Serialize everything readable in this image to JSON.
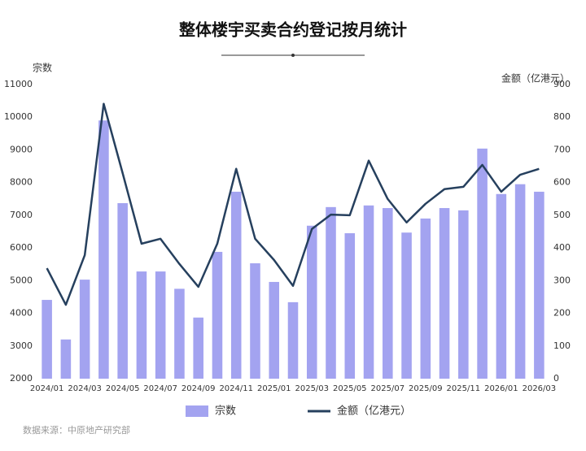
{
  "chart_data": {
    "type": "bar-line",
    "title": "整体楼宇买卖合约登记按月统计",
    "y_label": "宗数",
    "y2_label": "金额（亿港元）",
    "source": "数据来源：中原地产研究部",
    "categories": [
      "2024/01",
      null,
      "2024/03",
      null,
      "2024/05",
      null,
      "2024/07",
      null,
      "2024/09",
      null,
      "2024/11",
      null,
      "2025/01",
      null,
      "2025/03",
      null,
      "2025/05",
      null,
      "2025/07",
      null,
      "2025/09",
      null,
      "2025/11",
      null,
      "2026/01",
      null,
      "2026/03"
    ],
    "series": [
      {
        "name": "宗数",
        "type": "bar",
        "color": "#a3a3f0",
        "values": [
          4410,
          3200,
          5030,
          9900,
          7370,
          5280,
          5280,
          4750,
          3870,
          5880,
          7720,
          5530,
          4960,
          4340,
          6680,
          7250,
          6450,
          7300,
          7220,
          6470,
          6900,
          7220,
          7150,
          9040,
          7650,
          7950,
          7720
        ]
      },
      {
        "name": "金额（亿港元）",
        "type": "line",
        "axis": "y2",
        "color": "#26405e",
        "values": [
          338,
          226,
          378,
          841,
          629,
          413,
          428,
          351,
          281,
          413,
          642,
          428,
          363,
          284,
          458,
          502,
          500,
          667,
          550,
          478,
          535,
          580,
          587,
          654,
          572,
          624,
          642
        ]
      }
    ],
    "ylim": [
      2000,
      11000
    ],
    "yticks": [
      2000,
      3000,
      4000,
      5000,
      6000,
      7000,
      8000,
      9000,
      10000,
      11000
    ],
    "y2lim": [
      0,
      900
    ],
    "y2ticks": [
      0,
      100,
      200,
      300,
      400,
      500,
      600,
      700,
      800,
      900
    ],
    "grid": false
  }
}
